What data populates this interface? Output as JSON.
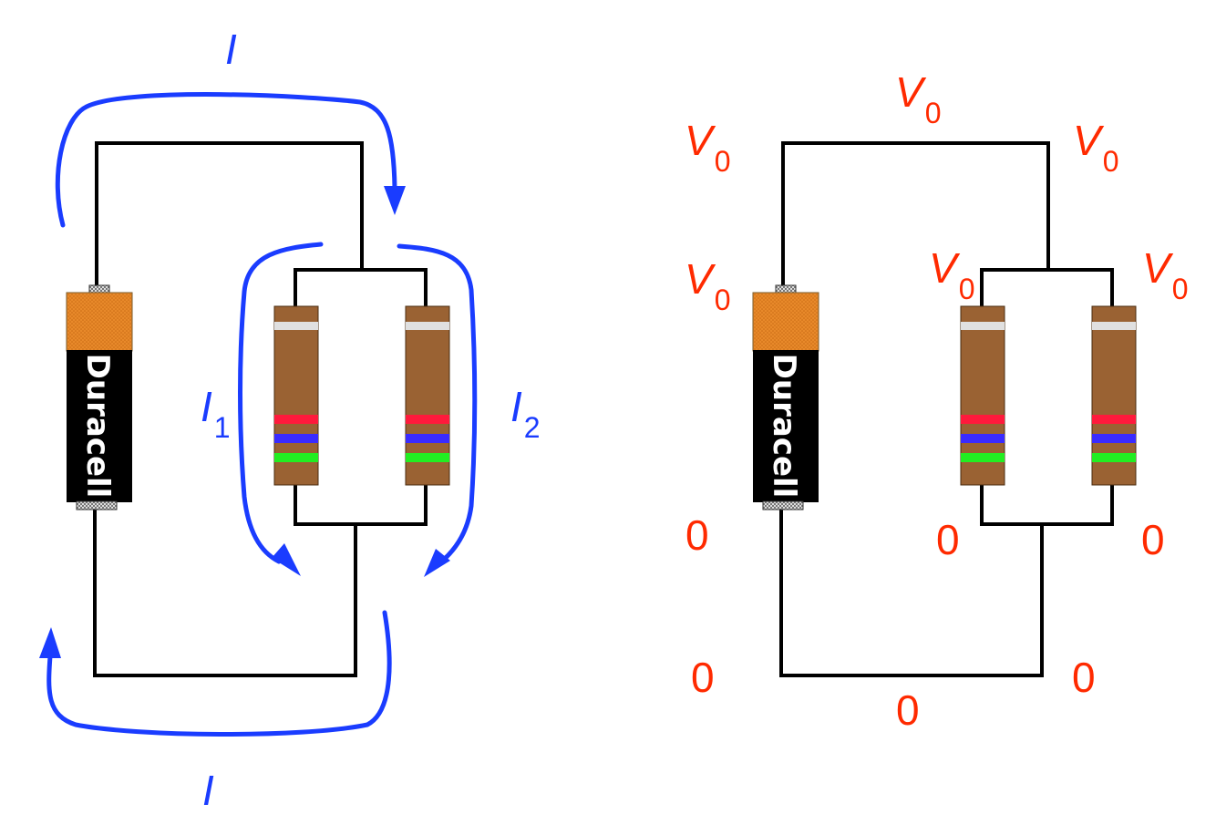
{
  "colors": {
    "wire": "#000000",
    "current": "#1a3cff",
    "voltage": "#ff2a00",
    "battery_top": "#e8892a",
    "battery_body": "#000000",
    "resistor_body": "#9a6233",
    "band_red": "#ff1a3c",
    "band_blue": "#3a2bff",
    "band_green": "#22ee22",
    "band_white": "#e0e0e0"
  },
  "battery": {
    "brand": "Duracell"
  },
  "left_circuit": {
    "current_top": {
      "symbol": "I",
      "sub": ""
    },
    "current_bottom": {
      "symbol": "I",
      "sub": ""
    },
    "current_branch1": {
      "symbol": "I",
      "sub": "1"
    },
    "current_branch2": {
      "symbol": "I",
      "sub": "2"
    }
  },
  "right_circuit": {
    "v_top_wire": {
      "symbol": "V",
      "sub": "0"
    },
    "v_top_left_corner": {
      "symbol": "V",
      "sub": "0"
    },
    "v_top_right_corner": {
      "symbol": "V",
      "sub": "0"
    },
    "v_battery_plus": {
      "symbol": "V",
      "sub": "0"
    },
    "v_resistor1_top": {
      "symbol": "V",
      "sub": "0"
    },
    "v_resistor2_top": {
      "symbol": "V",
      "sub": "0"
    },
    "zero_battery_minus": "0",
    "zero_resistor1_bottom": "0",
    "zero_resistor2_bottom": "0",
    "zero_bottom_left_corner": "0",
    "zero_bottom_right_corner": "0",
    "zero_bottom_wire": "0"
  }
}
